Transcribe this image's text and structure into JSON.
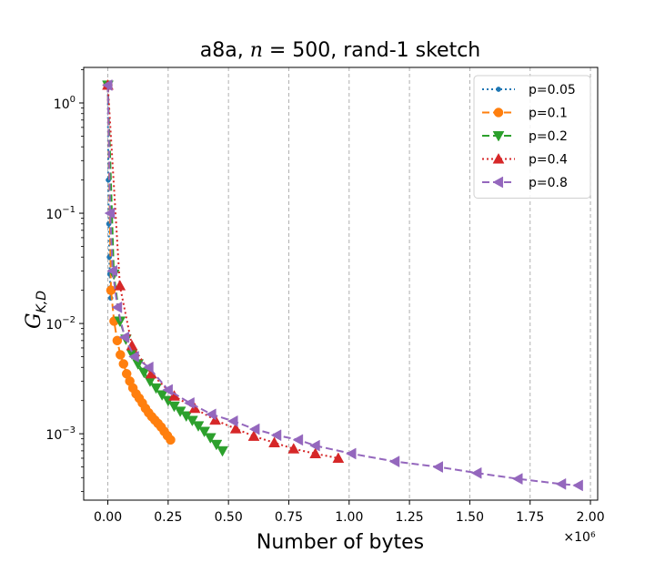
{
  "chart_data": {
    "type": "line",
    "title": "a8a, n = 500, rand-1 sketch",
    "title_parts": {
      "prefix": "a8a, ",
      "var": "n",
      "suffix": " = 500, rand-1 sketch"
    },
    "xlabel": "Number of bytes",
    "ylabel": "G_{K,D}",
    "ylabel_parts": {
      "main": "G",
      "sub": "K,D"
    },
    "x_offset_label": "×10⁶",
    "x_scale": "linear",
    "y_scale": "log",
    "xlim": [
      -0.1,
      2.03
    ],
    "ylim": [
      0.00025,
      2.1
    ],
    "xticks": [
      0.0,
      0.25,
      0.5,
      0.75,
      1.0,
      1.25,
      1.5,
      1.75,
      2.0
    ],
    "xtick_labels": [
      "0.00",
      "0.25",
      "0.50",
      "0.75",
      "1.00",
      "1.25",
      "1.50",
      "1.75",
      "2.00"
    ],
    "yticks": [
      1.0,
      0.1,
      0.01,
      0.001
    ],
    "ytick_labels": [
      {
        "base": "10",
        "exp": "0"
      },
      {
        "base": "10",
        "exp": "−1"
      },
      {
        "base": "10",
        "exp": "−2"
      },
      {
        "base": "10",
        "exp": "−3"
      }
    ],
    "grid": "x-dashed",
    "legend_position": "top-right",
    "series": [
      {
        "name": "p=0.05",
        "color": "#1f77b4",
        "linestyle": "dotted",
        "marker": "circle-small",
        "x": [
          0.0,
          0.002,
          0.004,
          0.006,
          0.008,
          0.01,
          0.012
        ],
        "y": [
          1.45,
          0.2,
          0.08,
          0.04,
          0.028,
          0.021,
          0.017
        ]
      },
      {
        "name": "p=0.1",
        "color": "#ff7f0e",
        "linestyle": "dashed",
        "marker": "circle",
        "x": [
          0.0,
          0.013,
          0.026,
          0.039,
          0.052,
          0.065,
          0.078,
          0.091,
          0.104,
          0.117,
          0.13,
          0.143,
          0.156,
          0.169,
          0.182,
          0.195,
          0.208,
          0.221,
          0.234,
          0.247,
          0.26
        ],
        "y": [
          1.45,
          0.02,
          0.0105,
          0.007,
          0.0052,
          0.0043,
          0.0035,
          0.003,
          0.0026,
          0.0023,
          0.0021,
          0.0019,
          0.0017,
          0.00155,
          0.00143,
          0.00133,
          0.00124,
          0.00115,
          0.00105,
          0.00096,
          0.00088
        ]
      },
      {
        "name": "p=0.2",
        "color": "#2ca02c",
        "linestyle": "dashed",
        "marker": "triangle-down",
        "x": [
          0.0,
          0.025,
          0.05,
          0.075,
          0.1,
          0.125,
          0.15,
          0.175,
          0.2,
          0.225,
          0.25,
          0.275,
          0.3,
          0.325,
          0.35,
          0.375,
          0.4,
          0.425,
          0.45,
          0.475
        ],
        "y": [
          1.45,
          0.028,
          0.0105,
          0.0072,
          0.0053,
          0.0043,
          0.0036,
          0.003,
          0.0026,
          0.00225,
          0.002,
          0.00178,
          0.0016,
          0.00145,
          0.00132,
          0.00118,
          0.00105,
          0.00092,
          0.0008,
          0.0007
        ]
      },
      {
        "name": "p=0.4",
        "color": "#d62728",
        "linestyle": "dotted",
        "marker": "triangle-up",
        "x": [
          0.0,
          0.05,
          0.1,
          0.18,
          0.275,
          0.36,
          0.445,
          0.53,
          0.605,
          0.69,
          0.77,
          0.86,
          0.955
        ],
        "y": [
          1.45,
          0.022,
          0.0063,
          0.0035,
          0.0022,
          0.0017,
          0.00133,
          0.00111,
          0.00095,
          0.00083,
          0.00073,
          0.00066,
          0.0006
        ]
      },
      {
        "name": "p=0.8",
        "color": "#9467bd",
        "linestyle": "dashed",
        "marker": "triangle-left",
        "x": [
          0.0,
          0.01,
          0.02,
          0.04,
          0.07,
          0.11,
          0.17,
          0.25,
          0.34,
          0.43,
          0.52,
          0.61,
          0.7,
          0.79,
          0.86,
          1.01,
          1.19,
          1.37,
          1.53,
          1.7,
          1.88,
          1.95
        ],
        "y": [
          1.45,
          0.1,
          0.03,
          0.014,
          0.0075,
          0.005,
          0.004,
          0.0025,
          0.0019,
          0.0015,
          0.0013,
          0.0011,
          0.00097,
          0.00088,
          0.00078,
          0.00066,
          0.00056,
          0.0005,
          0.00044,
          0.00039,
          0.00035,
          0.00034
        ]
      }
    ]
  }
}
